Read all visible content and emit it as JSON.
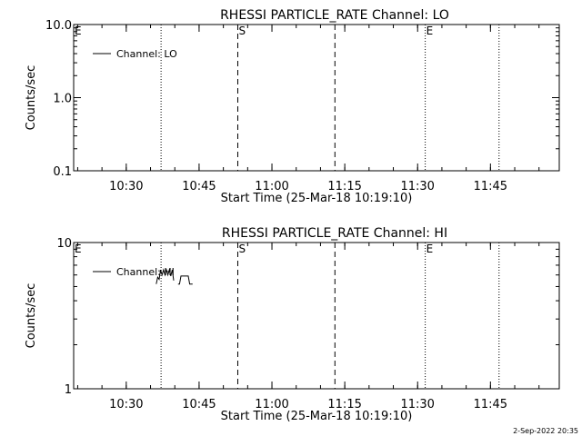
{
  "footer_timestamp": "2-Sep-2022 20:35",
  "chart_data": [
    {
      "type": "line",
      "title": "RHESSI PARTICLE_RATE Channel: LO",
      "xlabel": "Start Time (25-Mar-18 10:19:10)",
      "ylabel": "Counts/sec",
      "xlim_minutes_since_start": [
        0,
        100
      ],
      "ylim": [
        0.1,
        10.0
      ],
      "yscale": "log",
      "ytick_labels": [
        "0.1",
        "1.0",
        "10.0"
      ],
      "ytick_values": [
        0.1,
        1.0,
        10.0
      ],
      "xtick_labels": [
        "10:30",
        "10:45",
        "11:00",
        "11:15",
        "11:30",
        "11:45"
      ],
      "xtick_minutes": [
        10.83,
        25.83,
        40.83,
        55.83,
        70.83,
        85.83
      ],
      "legend": {
        "label": "Channel: LO",
        "placement": "top-left"
      },
      "series": [
        {
          "name": "Channel: LO",
          "x": [],
          "y": []
        }
      ],
      "markers": [
        {
          "label": "E",
          "x": 0,
          "style": "none"
        },
        {
          "label": "",
          "x": 18.0,
          "style": "dotted"
        },
        {
          "label": "S",
          "x": 33.8,
          "style": "dashed"
        },
        {
          "label": "",
          "x": 53.8,
          "style": "dashed"
        },
        {
          "label": "E",
          "x": 72.4,
          "style": "dotted"
        },
        {
          "label": "",
          "x": 87.6,
          "style": "dotted"
        }
      ]
    },
    {
      "type": "line",
      "title": "RHESSI PARTICLE_RATE Channel: HI",
      "xlabel": "Start Time (25-Mar-18 10:19:10)",
      "ylabel": "Counts/sec",
      "xlim_minutes_since_start": [
        0,
        100
      ],
      "ylim": [
        1,
        10
      ],
      "yscale": "log",
      "ytick_labels": [
        "1",
        "10"
      ],
      "ytick_values": [
        1,
        10
      ],
      "xtick_labels": [
        "10:30",
        "10:45",
        "11:00",
        "11:15",
        "11:30",
        "11:45"
      ],
      "xtick_minutes": [
        10.83,
        25.83,
        40.83,
        55.83,
        70.83,
        85.83
      ],
      "legend": {
        "label": "Channel: HI",
        "placement": "top-left"
      },
      "series": [
        {
          "name": "Channel: HI",
          "x": [
            17.0,
            17.3,
            17.6,
            17.9,
            18.2,
            18.5,
            18.8,
            19.1,
            19.4,
            19.7,
            20.0,
            20.3,
            20.6,
            20.9,
            21.2,
            21.5,
            21.8,
            22.1,
            22.4,
            22.7,
            23.0,
            23.3,
            23.6,
            23.9,
            24.2,
            24.5
          ],
          "y": [
            5.2,
            5.8,
            5.6,
            6.5,
            6.0,
            6.5,
            6.0,
            6.5,
            6.0,
            6.5,
            5.9,
            6.5,
            5.5,
            null,
            null,
            5.2,
            5.2,
            5.9,
            5.9,
            5.9,
            5.9,
            5.9,
            5.9,
            5.2,
            5.2,
            5.2
          ]
        }
      ],
      "markers": [
        {
          "label": "E",
          "x": 0,
          "style": "none"
        },
        {
          "label": "",
          "x": 18.0,
          "style": "dotted"
        },
        {
          "label": "S",
          "x": 33.8,
          "style": "dashed"
        },
        {
          "label": "",
          "x": 53.8,
          "style": "dashed"
        },
        {
          "label": "E",
          "x": 72.4,
          "style": "dotted"
        },
        {
          "label": "",
          "x": 87.6,
          "style": "dotted"
        }
      ]
    }
  ]
}
